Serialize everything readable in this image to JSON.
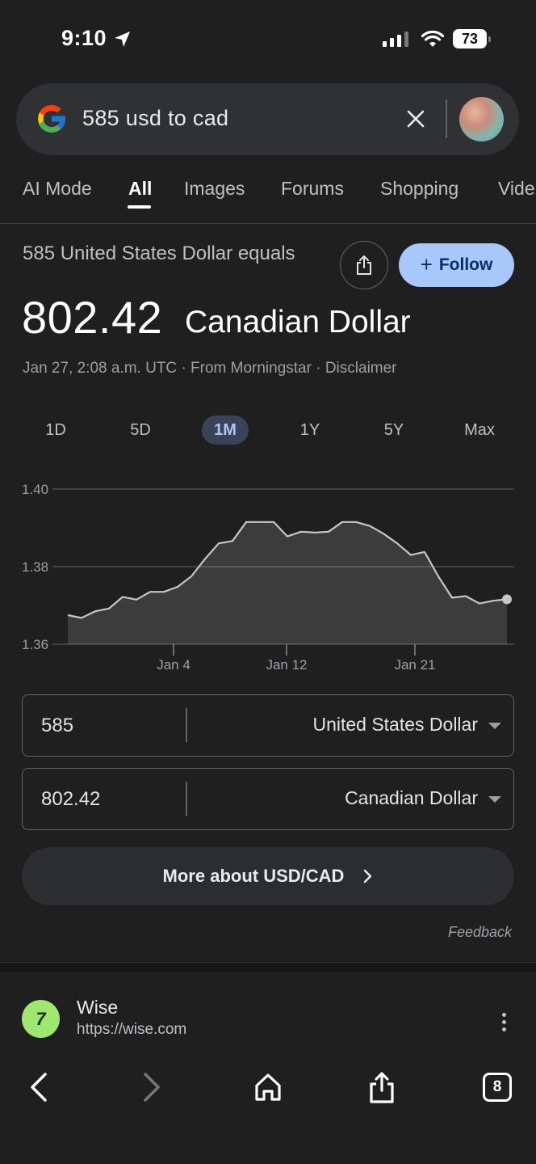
{
  "status_bar": {
    "time": "9:10",
    "battery": "73"
  },
  "search": {
    "query": "585 usd to cad"
  },
  "tabs": [
    {
      "label": "AI Mode"
    },
    {
      "label": "All"
    },
    {
      "label": "Images"
    },
    {
      "label": "Forums"
    },
    {
      "label": "Shopping"
    },
    {
      "label": "Vide"
    }
  ],
  "active_tab": "All",
  "header": {
    "lead": "585 United States Dollar equals",
    "amount": "802.42",
    "currency": "Canadian Dollar",
    "follow_label": "Follow",
    "meta": "Jan 27, 2:08 a.m. UTC · From Morningstar · Disclaimer"
  },
  "ranges": [
    {
      "label": "1D"
    },
    {
      "label": "5D"
    },
    {
      "label": "1M"
    },
    {
      "label": "1Y"
    },
    {
      "label": "5Y"
    },
    {
      "label": "Max"
    }
  ],
  "active_range": "1M",
  "chart_data": {
    "type": "area",
    "y_ticks": [
      "1.40",
      "1.38",
      "1.36"
    ],
    "x_ticks": [
      "Jan 4",
      "Jan 12",
      "Jan 21"
    ],
    "ylim": [
      1.36,
      1.4
    ],
    "grid": true,
    "values": [
      1.3675,
      1.3668,
      1.3685,
      1.3692,
      1.3722,
      1.3715,
      1.3735,
      1.3735,
      1.3748,
      1.3775,
      1.382,
      1.386,
      1.3866,
      1.3915,
      1.3915,
      1.3915,
      1.3878,
      1.389,
      1.3888,
      1.389,
      1.3915,
      1.3915,
      1.3905,
      1.3885,
      1.386,
      1.383,
      1.3838,
      1.3775,
      1.372,
      1.3724,
      1.3705,
      1.3712,
      1.3716
    ]
  },
  "converter": {
    "from": {
      "value": "585",
      "currency": "United States Dollar"
    },
    "to": {
      "value": "802.42",
      "currency": "Canadian Dollar"
    }
  },
  "more_label": "More about USD/CAD",
  "feedback_label": "Feedback",
  "result": {
    "name": "Wise",
    "url": "https://wise.com"
  },
  "toolbar": {
    "tab_count": "8"
  }
}
